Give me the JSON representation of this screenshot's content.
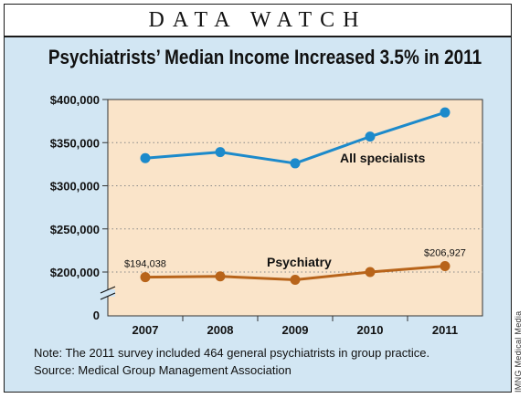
{
  "banner": "DATA WATCH",
  "chart_data": {
    "type": "line",
    "title": "Psychiatrists’ Median Income Increased 3.5% in 2011",
    "x": [
      "2007",
      "2008",
      "2009",
      "2010",
      "2011"
    ],
    "y_ticks": [
      "$400,000",
      "$350,000",
      "$300,000",
      "$250,000",
      "$200,000",
      "0"
    ],
    "ylim": [
      0,
      400000
    ],
    "axis_break": true,
    "grid": "dotted horizontal",
    "series": [
      {
        "name": "All specialists",
        "color": "#1c8acb",
        "values": [
          332000,
          339000,
          326000,
          357000,
          385000
        ]
      },
      {
        "name": "Psychiatry",
        "color": "#b8641a",
        "values": [
          194038,
          195000,
          191000,
          200000,
          206927
        ],
        "point_labels": [
          "$194,038",
          "",
          "",
          "",
          "$206,927"
        ]
      }
    ]
  },
  "notes": {
    "line1": "Note: The 2011 survey included 464 general psychiatrists in group practice.",
    "line2": "Source: Medical Group Management Association"
  },
  "credit": "IMNG Medical Media",
  "colors": {
    "background": "#d2e6f3",
    "plot_area": "#fae4c9",
    "all_specialists": "#1c8acb",
    "psychiatry": "#b8641a"
  }
}
